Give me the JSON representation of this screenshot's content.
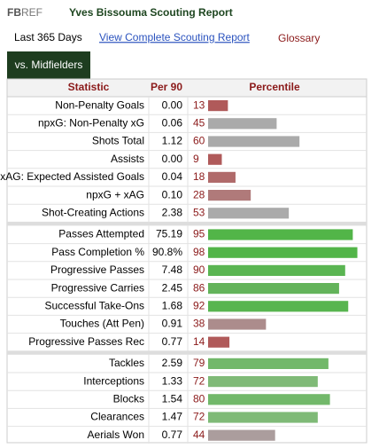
{
  "header": {
    "logo": [
      "FB",
      "REF"
    ],
    "title": "Yves Bissouma Scouting Report"
  },
  "nav": {
    "period": "Last 365 Days",
    "link": "View Complete Scouting Report",
    "glossary": "Glossary"
  },
  "tab": "vs. Midfielders",
  "table": {
    "columns": [
      "Statistic",
      "Per 90",
      "Percentile"
    ],
    "groups": [
      [
        {
          "stat": "Non-Penalty Goals",
          "per90": "0.00",
          "percentile": 13,
          "color": "#b05a5a"
        },
        {
          "stat": "npxG: Non-Penalty xG",
          "per90": "0.06",
          "percentile": 45,
          "color": "#aaaaaa"
        },
        {
          "stat": "Shots Total",
          "per90": "1.12",
          "percentile": 60,
          "color": "#aaaaaa"
        },
        {
          "stat": "Assists",
          "per90": "0.00",
          "percentile": 9,
          "color": "#b05a5a"
        },
        {
          "stat": "xAG: Expected Assisted Goals",
          "per90": "0.04",
          "percentile": 18,
          "color": "#b06a6a"
        },
        {
          "stat": "npxG + xAG",
          "per90": "0.10",
          "percentile": 28,
          "color": "#b07a7a"
        },
        {
          "stat": "Shot-Creating Actions",
          "per90": "2.38",
          "percentile": 53,
          "color": "#aaaaaa"
        }
      ],
      [
        {
          "stat": "Passes Attempted",
          "per90": "75.19",
          "percentile": 95,
          "color": "#52b548"
        },
        {
          "stat": "Pass Completion %",
          "per90": "90.8%",
          "percentile": 98,
          "color": "#52b548"
        },
        {
          "stat": "Progressive Passes",
          "per90": "7.48",
          "percentile": 90,
          "color": "#5ab552"
        },
        {
          "stat": "Progressive Carries",
          "per90": "2.45",
          "percentile": 86,
          "color": "#63b35a"
        },
        {
          "stat": "Successful Take-Ons",
          "per90": "1.68",
          "percentile": 92,
          "color": "#58b550"
        },
        {
          "stat": "Touches (Att Pen)",
          "per90": "0.91",
          "percentile": 38,
          "color": "#ac8c8c"
        },
        {
          "stat": "Progressive Passes Rec",
          "per90": "0.77",
          "percentile": 14,
          "color": "#b05a5a"
        }
      ],
      [
        {
          "stat": "Tackles",
          "per90": "2.59",
          "percentile": 79,
          "color": "#72b86a"
        },
        {
          "stat": "Interceptions",
          "per90": "1.33",
          "percentile": 72,
          "color": "#7fba77"
        },
        {
          "stat": "Blocks",
          "per90": "1.54",
          "percentile": 80,
          "color": "#72b86a"
        },
        {
          "stat": "Clearances",
          "per90": "1.47",
          "percentile": 72,
          "color": "#7fba77"
        },
        {
          "stat": "Aerials Won",
          "per90": "0.77",
          "percentile": 44,
          "color": "#ab9d9d"
        }
      ]
    ]
  }
}
